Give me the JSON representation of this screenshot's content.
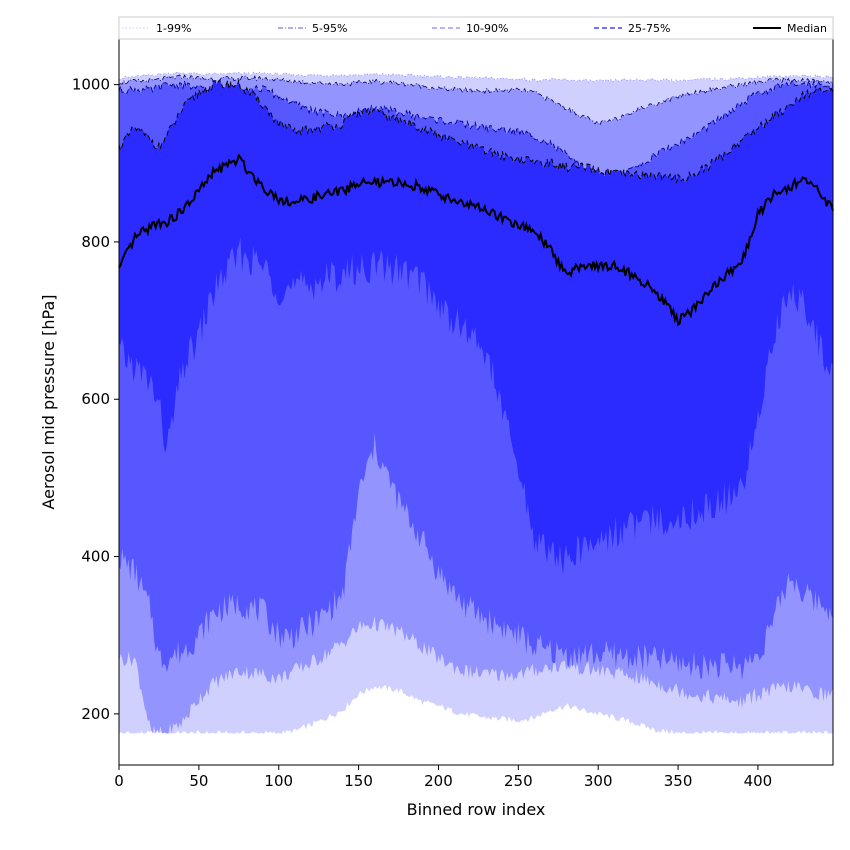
{
  "chart_data": {
    "type": "area",
    "xlabel": "Binned row index",
    "ylabel": "Aerosol mid pressure [hPa]",
    "xlim": [
      0,
      447
    ],
    "ylim": [
      135,
      1058
    ],
    "xticks": [
      0,
      50,
      100,
      150,
      200,
      250,
      300,
      350,
      400
    ],
    "yticks": [
      200,
      400,
      600,
      800,
      1000
    ],
    "grid": false,
    "legend_position": "top",
    "colors": {
      "band_1_99": "#d0d0ff",
      "band_5_95": "#9494ff",
      "band_10_90": "#5757ff",
      "band_25_75": "#2b2bff",
      "median": "#000000",
      "frame": "#000000"
    },
    "legend": [
      {
        "label": "1-99%",
        "style": "dotted"
      },
      {
        "label": "5-95%",
        "style": "dashdot"
      },
      {
        "label": "10-90%",
        "style": "dashed"
      },
      {
        "label": "25-75%",
        "style": "dashed"
      },
      {
        "label": "Median",
        "style": "solid"
      }
    ],
    "x": [
      0,
      10,
      20,
      25,
      30,
      40,
      50,
      60,
      75,
      90,
      100,
      110,
      125,
      140,
      150,
      160,
      175,
      190,
      200,
      215,
      230,
      250,
      260,
      270,
      280,
      290,
      300,
      310,
      320,
      335,
      350,
      360,
      375,
      390,
      400,
      410,
      420,
      430,
      440,
      447
    ],
    "series": [
      {
        "name": "1-99%",
        "lower": [
          175,
          175,
          175,
          175,
          175,
          175,
          175,
          175,
          175,
          175,
          175,
          178,
          190,
          205,
          225,
          235,
          230,
          215,
          210,
          200,
          195,
          192,
          195,
          205,
          210,
          205,
          200,
          195,
          190,
          180,
          175,
          175,
          175,
          175,
          175,
          175,
          175,
          175,
          175,
          175
        ],
        "upper": [
          1008,
          1010,
          1012,
          1013,
          1014,
          1015,
          1013,
          1013,
          1014,
          1014,
          1013,
          1012,
          1012,
          1012,
          1012,
          1013,
          1012,
          1011,
          1010,
          1009,
          1008,
          1007,
          1006,
          1006,
          1006,
          1005,
          1004,
          1005,
          1006,
          1006,
          1005,
          1006,
          1007,
          1008,
          1009,
          1010,
          1011,
          1011,
          1010,
          1009
        ]
      },
      {
        "name": "5-95%",
        "lower": [
          270,
          270,
          175,
          175,
          175,
          190,
          220,
          240,
          255,
          250,
          245,
          255,
          270,
          290,
          310,
          315,
          305,
          285,
          270,
          255,
          250,
          250,
          255,
          260,
          262,
          258,
          255,
          252,
          248,
          240,
          230,
          225,
          220,
          215,
          225,
          230,
          235,
          230,
          225,
          225
        ],
        "upper": [
          1003,
          1004,
          1005,
          1006,
          1008,
          1010,
          1008,
          1007,
          1008,
          1008,
          1006,
          1004,
          1002,
          1001,
          1002,
          1004,
          1002,
          998,
          995,
          993,
          992,
          993,
          990,
          980,
          970,
          960,
          950,
          955,
          965,
          975,
          985,
          990,
          995,
          1000,
          1003,
          1005,
          1006,
          1005,
          1004,
          1003
        ]
      },
      {
        "name": "10-90%",
        "lower": [
          400,
          380,
          330,
          270,
          270,
          280,
          300,
          330,
          340,
          330,
          300,
          300,
          320,
          350,
          480,
          540,
          470,
          420,
          380,
          340,
          320,
          300,
          285,
          280,
          275,
          275,
          275,
          275,
          272,
          270,
          265,
          262,
          262,
          260,
          275,
          320,
          375,
          350,
          340,
          330
        ],
        "upper": [
          993,
          994,
          993,
          996,
          1000,
          1000,
          995,
          990,
          993,
          995,
          985,
          975,
          965,
          960,
          965,
          970,
          965,
          958,
          955,
          950,
          945,
          940,
          935,
          925,
          910,
          895,
          880,
          880,
          890,
          910,
          925,
          935,
          955,
          975,
          990,
          995,
          1000,
          1002,
          1000,
          999
        ]
      },
      {
        "name": "25-75%",
        "lower": [
          660,
          640,
          620,
          590,
          535,
          640,
          680,
          740,
          785,
          770,
          740,
          740,
          750,
          760,
          765,
          770,
          765,
          750,
          720,
          690,
          660,
          510,
          425,
          405,
          395,
          410,
          420,
          430,
          440,
          445,
          450,
          455,
          470,
          480,
          580,
          680,
          740,
          720,
          660,
          630
        ],
        "upper": [
          920,
          945,
          930,
          920,
          935,
          970,
          990,
          1000,
          1000,
          975,
          950,
          940,
          945,
          950,
          965,
          965,
          955,
          945,
          935,
          925,
          915,
          905,
          902,
          900,
          895,
          895,
          890,
          887,
          885,
          885,
          880,
          885,
          905,
          930,
          945,
          960,
          975,
          990,
          990,
          992
        ]
      },
      {
        "name": "Median",
        "values": [
          765,
          805,
          820,
          825,
          825,
          840,
          865,
          890,
          905,
          870,
          855,
          850,
          858,
          865,
          875,
          875,
          875,
          870,
          860,
          850,
          840,
          820,
          815,
          790,
          760,
          770,
          770,
          770,
          760,
          740,
          700,
          715,
          750,
          775,
          835,
          860,
          870,
          880,
          860,
          840
        ]
      }
    ]
  }
}
